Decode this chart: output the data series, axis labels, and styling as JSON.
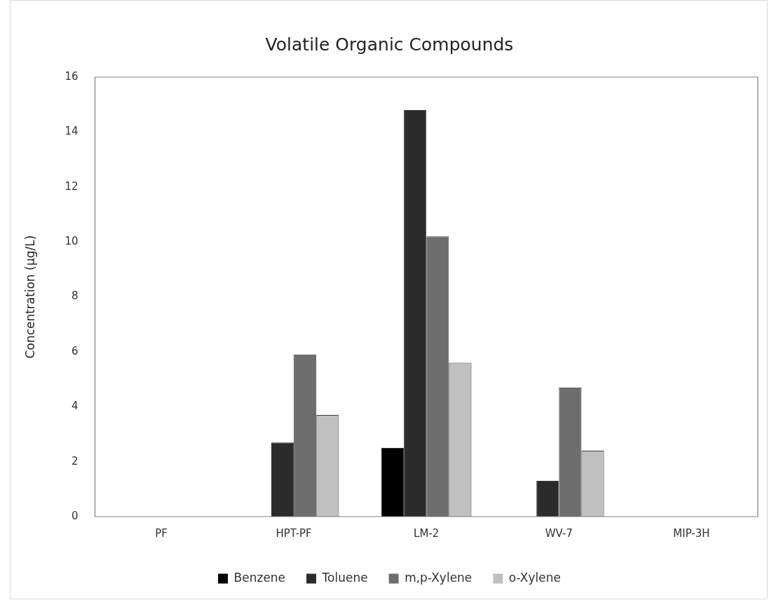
{
  "chart_data": {
    "type": "bar",
    "title": "Volatile Organic Compounds",
    "ylabel": "Concentration (µg/L)",
    "categories": [
      "PF",
      "HPT-PF",
      "LM-2",
      "WV-7",
      "MIP-3H"
    ],
    "series": [
      {
        "name": "Benzene",
        "color": "#000000",
        "values": [
          0,
          0,
          2.5,
          0,
          0
        ]
      },
      {
        "name": "Toluene",
        "color": "#2b2b2b",
        "values": [
          0,
          2.7,
          14.8,
          1.3,
          0
        ]
      },
      {
        "name": "m,p-Xylene",
        "color": "#6d6d6d",
        "values": [
          0,
          5.9,
          10.2,
          4.7,
          0
        ]
      },
      {
        "name": "o-Xylene",
        "color": "#c0c0c0",
        "values": [
          0,
          3.7,
          5.6,
          2.4,
          0
        ]
      }
    ],
    "ylim": [
      0,
      16
    ],
    "yticks": [
      0,
      2,
      4,
      6,
      8,
      10,
      12,
      14,
      16
    ],
    "grid": false,
    "legend": "bottom"
  }
}
